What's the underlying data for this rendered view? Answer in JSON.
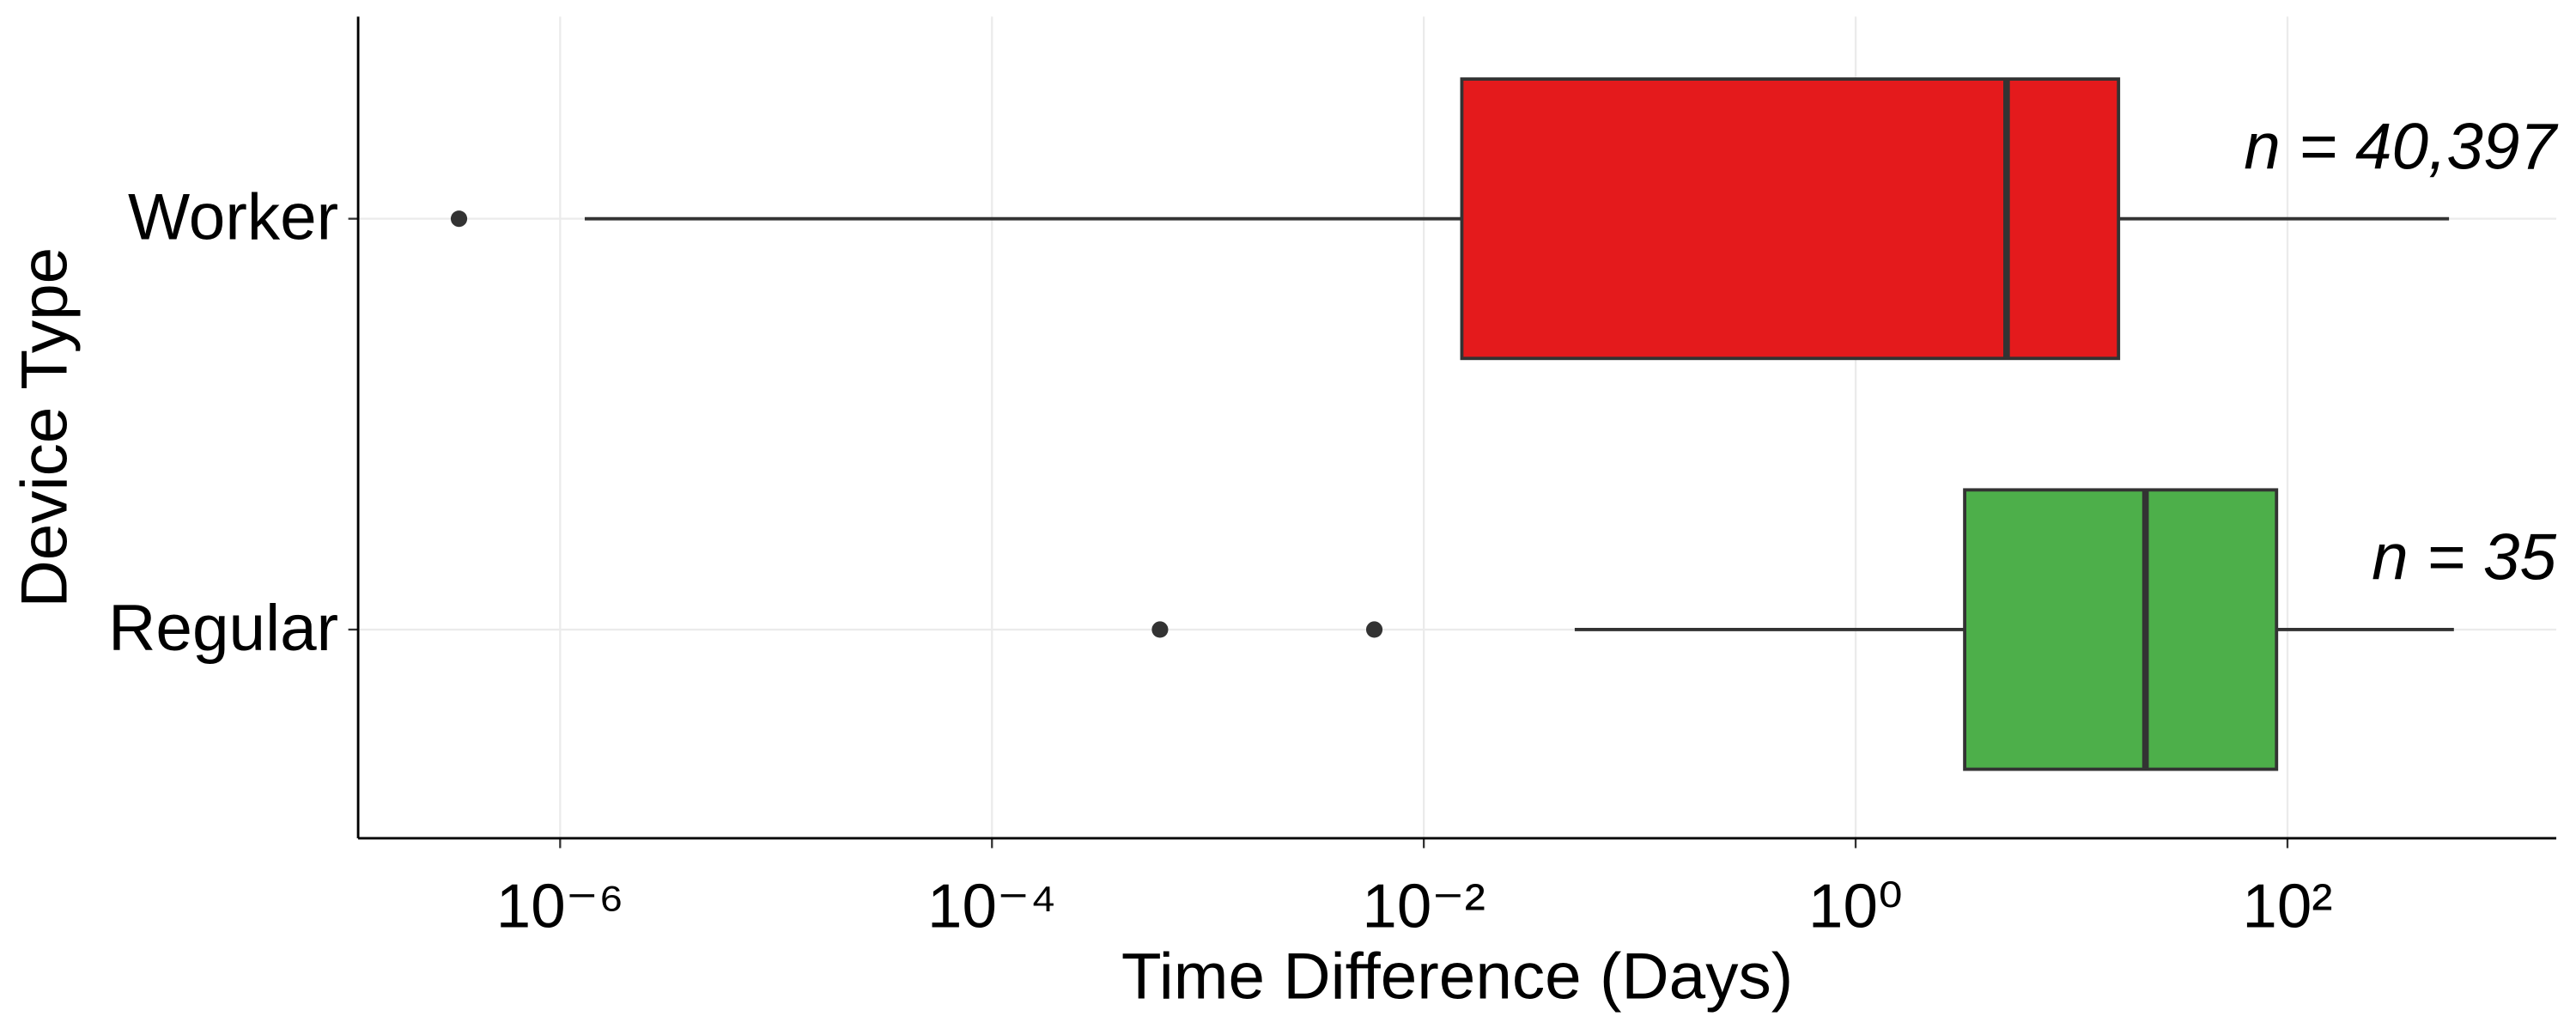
{
  "chart_data": {
    "type": "boxplot",
    "orientation": "horizontal",
    "xscale": "log",
    "x_label": "Time Difference (Days)",
    "y_label": "Device Type",
    "xlim": [
      1.16e-07,
      1758
    ],
    "xticks": [
      {
        "value": 1e-06,
        "label": "10⁻⁶"
      },
      {
        "value": 0.0001,
        "label": "10⁻⁴"
      },
      {
        "value": 0.01,
        "label": "10⁻²"
      },
      {
        "value": 1,
        "label": "10⁰"
      },
      {
        "value": 100,
        "label": "10²"
      }
    ],
    "grid": true,
    "boxes": [
      {
        "name": "Worker",
        "color": "#e41a1c",
        "min": 1.3e-06,
        "q1": 0.015,
        "median": 5.0,
        "q3": 16.5,
        "max": 560,
        "outliers": [
          3.4e-07
        ],
        "annotation": "n = 40,397"
      },
      {
        "name": "Regular",
        "color": "#4daf4a",
        "min": 0.05,
        "q1": 3.2,
        "median": 22,
        "q3": 89,
        "max": 590,
        "outliers": [
          0.0006,
          0.0059
        ],
        "annotation": "n = 35"
      }
    ]
  }
}
